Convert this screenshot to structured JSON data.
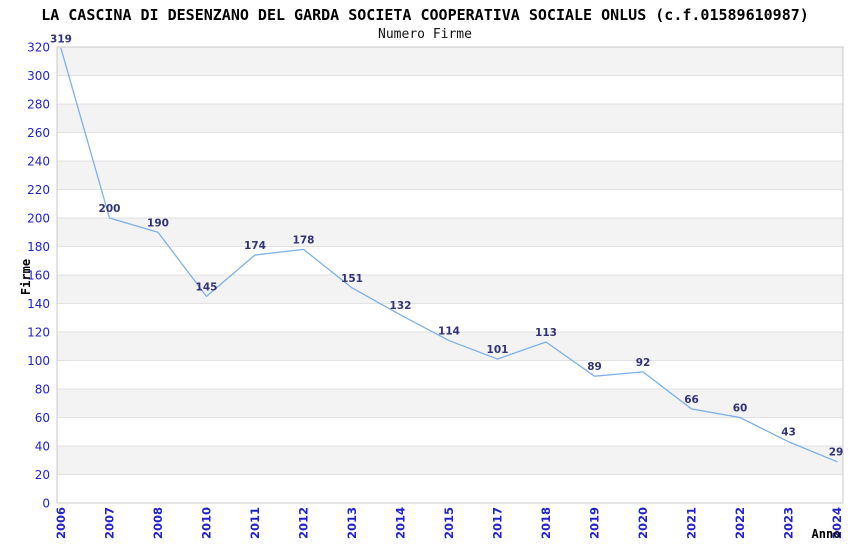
{
  "chart_data": {
    "type": "line",
    "title": "LA CASCINA DI DESENZANO DEL GARDA SOCIETA COOPERATIVA SOCIALE ONLUS (c.f.01589610987)",
    "subtitle": "Numero Firme",
    "xlabel": "Anno",
    "ylabel": "Firme",
    "categories": [
      "2006",
      "2007",
      "2008",
      "2010",
      "2011",
      "2012",
      "2013",
      "2014",
      "2015",
      "2017",
      "2018",
      "2019",
      "2020",
      "2021",
      "2022",
      "2023",
      "2024"
    ],
    "values": [
      319,
      200,
      190,
      145,
      174,
      178,
      151,
      132,
      114,
      101,
      113,
      89,
      92,
      66,
      60,
      43,
      29
    ],
    "ylim": [
      0,
      320
    ],
    "ytick_step": 20,
    "grid": "on",
    "legend": "none",
    "band_pattern": "alternating-horizontal",
    "colors": {
      "line": "#7FB0E6",
      "axis_tick_label": "#2222CC",
      "point_label": "#333377",
      "band_fill": "#F3F3F3",
      "grid_line": "#E2E2E2",
      "plot_border": "#C8C8C8",
      "title_text": "#000000"
    }
  }
}
